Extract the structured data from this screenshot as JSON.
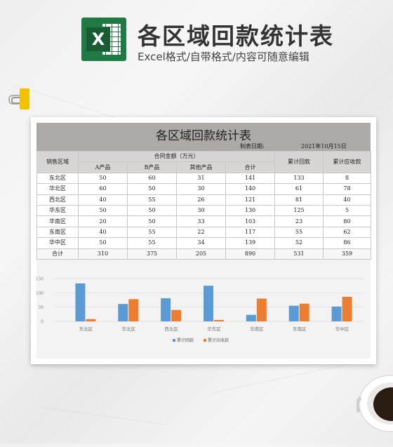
{
  "header": {
    "title": "各区域回款统计表",
    "subtitle": "Excel格式/自带格式/内容可随意编辑",
    "logo_letter": "X"
  },
  "sheet": {
    "title": "各区域回款统计表",
    "date_label": "制表日期:",
    "date_value": "2021年10月15日",
    "headers": {
      "region": "销售区域",
      "contract_group": "合同金额（万元）",
      "product_a": "A产品",
      "product_b": "B产品",
      "other": "其他产品",
      "sum": "合计",
      "cum_received": "累计回款",
      "cum_receivable": "累计应收款"
    },
    "rows": [
      {
        "region": "东北区",
        "a": "50",
        "b": "60",
        "other": "31",
        "sum": "141",
        "received": "133",
        "receivable": "8"
      },
      {
        "region": "华北区",
        "a": "60",
        "b": "50",
        "other": "30",
        "sum": "140",
        "received": "61",
        "receivable": "78"
      },
      {
        "region": "西北区",
        "a": "40",
        "b": "55",
        "other": "26",
        "sum": "121",
        "received": "81",
        "receivable": "40"
      },
      {
        "region": "华东区",
        "a": "50",
        "b": "50",
        "other": "30",
        "sum": "130",
        "received": "125",
        "receivable": "5"
      },
      {
        "region": "华南区",
        "a": "20",
        "b": "50",
        "other": "33",
        "sum": "103",
        "received": "23",
        "receivable": "80"
      },
      {
        "region": "东南区",
        "a": "40",
        "b": "55",
        "other": "22",
        "sum": "117",
        "received": "55",
        "receivable": "62"
      },
      {
        "region": "华中区",
        "a": "50",
        "b": "55",
        "other": "34",
        "sum": "139",
        "received": "52",
        "receivable": "86"
      }
    ],
    "total": {
      "region": "合计",
      "a": "310",
      "b": "375",
      "other": "205",
      "sum": "890",
      "received": "531",
      "receivable": "359"
    }
  },
  "chart_data": {
    "type": "bar",
    "categories": [
      "东北区",
      "华北区",
      "西北区",
      "华东区",
      "华南区",
      "东南区",
      "华中区"
    ],
    "series": [
      {
        "name": "累计回款",
        "values": [
          133,
          61,
          81,
          125,
          23,
          55,
          52
        ],
        "color": "#5b9bd5"
      },
      {
        "name": "累计应收款",
        "values": [
          8,
          78,
          40,
          5,
          80,
          62,
          86
        ],
        "color": "#ed7d31"
      }
    ],
    "yticks": [
      0,
      50,
      100,
      150
    ],
    "ylim": [
      0,
      150
    ],
    "grid": true,
    "legend": "bottom"
  }
}
